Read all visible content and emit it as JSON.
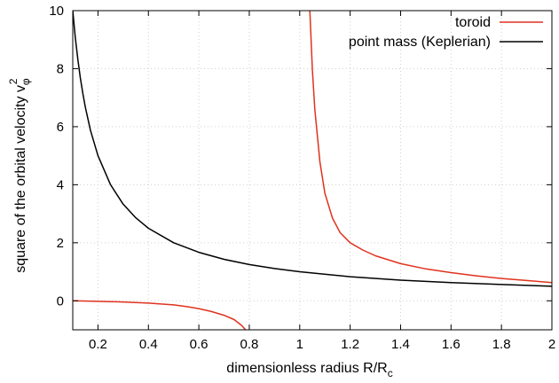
{
  "chart_data": {
    "type": "line",
    "xlabel": "dimensionless radius R/R",
    "xlabel_sub": "c",
    "ylabel": "square of the orbital velocity v",
    "ylabel_sub": "φ",
    "ylabel_sup": "2",
    "xlim": [
      0.1,
      2.0
    ],
    "ylim": [
      -1,
      10
    ],
    "x_ticks": [
      0.2,
      0.4,
      0.6,
      0.8,
      1,
      1.2,
      1.4,
      1.6,
      1.8,
      2
    ],
    "x_tick_labels": [
      "0.2",
      "0.4",
      "0.6",
      "0.8",
      "1",
      "1.2",
      "1.4",
      "1.6",
      "1.8",
      "2"
    ],
    "y_ticks": [
      0,
      2,
      4,
      6,
      8,
      10
    ],
    "y_tick_labels": [
      "0",
      "2",
      "4",
      "6",
      "8",
      "10"
    ],
    "grid": true,
    "legend_position": "top-right",
    "series": [
      {
        "name": "toroid",
        "color": "#e0321e",
        "segments": [
          [
            [
              0.1,
              0.0
            ],
            [
              0.2,
              -0.02
            ],
            [
              0.3,
              -0.04
            ],
            [
              0.4,
              -0.08
            ],
            [
              0.5,
              -0.14
            ],
            [
              0.55,
              -0.2
            ],
            [
              0.6,
              -0.27
            ],
            [
              0.65,
              -0.37
            ],
            [
              0.7,
              -0.5
            ],
            [
              0.74,
              -0.65
            ],
            [
              0.77,
              -0.85
            ],
            [
              0.785,
              -1.0
            ]
          ],
          [
            [
              1.04,
              10
            ],
            [
              1.05,
              8.0
            ],
            [
              1.06,
              6.6
            ],
            [
              1.08,
              4.8
            ],
            [
              1.1,
              3.7
            ],
            [
              1.13,
              2.85
            ],
            [
              1.16,
              2.35
            ],
            [
              1.2,
              2.0
            ],
            [
              1.25,
              1.75
            ],
            [
              1.3,
              1.55
            ],
            [
              1.4,
              1.28
            ],
            [
              1.5,
              1.1
            ],
            [
              1.6,
              0.97
            ],
            [
              1.7,
              0.86
            ],
            [
              1.8,
              0.77
            ],
            [
              1.9,
              0.7
            ],
            [
              2.0,
              0.63
            ]
          ]
        ]
      },
      {
        "name": "point mass (Keplerian)",
        "color": "#000000",
        "segments": [
          [
            [
              0.1,
              10
            ],
            [
              0.11,
              9.09
            ],
            [
              0.12,
              8.33
            ],
            [
              0.13,
              7.69
            ],
            [
              0.14,
              7.14
            ],
            [
              0.15,
              6.67
            ],
            [
              0.17,
              5.88
            ],
            [
              0.2,
              5.0
            ],
            [
              0.25,
              4.0
            ],
            [
              0.3,
              3.33
            ],
            [
              0.35,
              2.86
            ],
            [
              0.4,
              2.5
            ],
            [
              0.5,
              2.0
            ],
            [
              0.6,
              1.67
            ],
            [
              0.7,
              1.43
            ],
            [
              0.8,
              1.25
            ],
            [
              0.9,
              1.11
            ],
            [
              1.0,
              1.0
            ],
            [
              1.2,
              0.83
            ],
            [
              1.4,
              0.71
            ],
            [
              1.6,
              0.63
            ],
            [
              1.8,
              0.56
            ],
            [
              2.0,
              0.5
            ]
          ]
        ]
      }
    ]
  }
}
